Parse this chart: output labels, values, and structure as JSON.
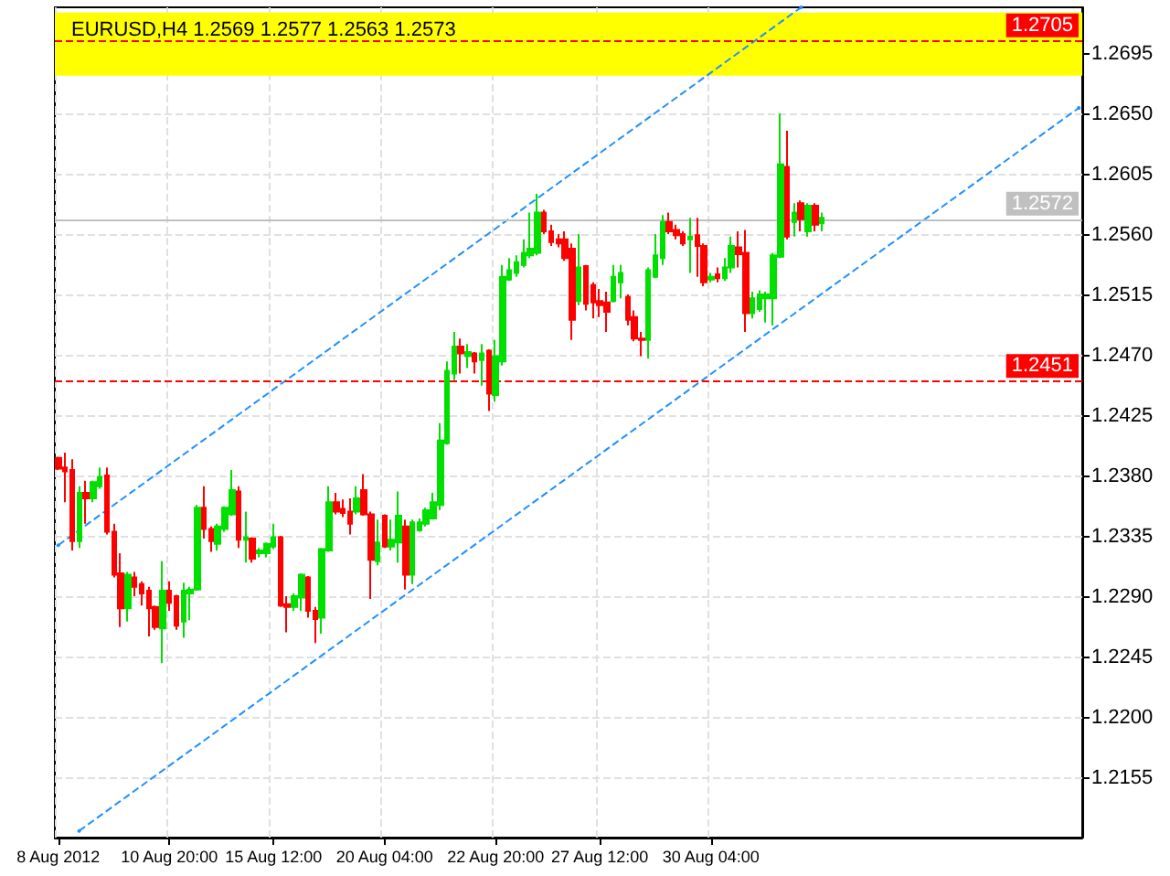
{
  "chart_data": {
    "type": "candlestick",
    "title": "EURUSD,H4 1.2569 1.2577 1.2563 1.2573",
    "categories": [
      "8 Aug 2012",
      null,
      null,
      null,
      null,
      null,
      null,
      null,
      null,
      null,
      null,
      null,
      null,
      null,
      null,
      null,
      "10 Aug 20:00",
      null,
      null,
      null,
      null,
      null,
      null,
      null,
      null,
      null,
      null,
      null,
      null,
      null,
      null,
      "15 Aug 12:00",
      null,
      null,
      null,
      null,
      null,
      null,
      null,
      null,
      null,
      null,
      null,
      null,
      null,
      null,
      null,
      "20 Aug 04:00",
      null,
      null,
      null,
      null,
      null,
      null,
      null,
      null,
      null,
      null,
      null,
      null,
      null,
      null,
      null,
      "22 Aug 20:00",
      null,
      null,
      null,
      null,
      null,
      null,
      null,
      null,
      null,
      null,
      null,
      null,
      null,
      null,
      "27 Aug 12:00",
      null,
      null,
      null,
      null,
      null,
      null,
      null,
      null,
      null,
      null,
      null,
      null,
      null,
      null,
      null,
      "30 Aug 04:00",
      null,
      null,
      null,
      null,
      null,
      null,
      null,
      null,
      null,
      null,
      null,
      null,
      null,
      null,
      null,
      null,
      null,
      null,
      null,
      null,
      null,
      null,
      null,
      null,
      null,
      null,
      null,
      null,
      null,
      null,
      null,
      null,
      null,
      null,
      null,
      null,
      null,
      null,
      null,
      null,
      null,
      null,
      null,
      null,
      null,
      null,
      null,
      null,
      null,
      null,
      null,
      null,
      null
    ],
    "ohlc": [
      [
        1.2394,
        1.2395,
        1.2385,
        1.2386
      ],
      [
        1.2387,
        1.2398,
        1.2361,
        1.2384
      ],
      [
        1.2385,
        1.2393,
        1.2325,
        1.2332
      ],
      [
        1.2332,
        1.2373,
        1.2327,
        1.2368
      ],
      [
        1.2368,
        1.2377,
        1.2345,
        1.2364
      ],
      [
        1.2364,
        1.2377,
        1.2361,
        1.2376
      ],
      [
        1.2373,
        1.2387,
        1.2371,
        1.238
      ],
      [
        1.2381,
        1.2387,
        1.2337,
        1.2339
      ],
      [
        1.2339,
        1.2345,
        1.2305,
        1.2307
      ],
      [
        1.2308,
        1.2323,
        1.2268,
        1.2282
      ],
      [
        1.2282,
        1.2309,
        1.2272,
        1.2307
      ],
      [
        1.2305,
        1.2309,
        1.2291,
        1.2298
      ],
      [
        1.23,
        1.2302,
        1.2284,
        1.2293
      ],
      [
        1.2295,
        1.2298,
        1.2261,
        1.2282
      ],
      [
        1.2283,
        1.2284,
        1.2266,
        1.2268
      ],
      [
        1.2267,
        1.2317,
        1.2241,
        1.2295
      ],
      [
        1.2295,
        1.2302,
        1.228,
        1.2286
      ],
      [
        1.2291,
        1.2292,
        1.2266,
        1.2269
      ],
      [
        1.2272,
        1.2301,
        1.226,
        1.2295
      ],
      [
        1.2293,
        1.2298,
        1.2273,
        1.2296
      ],
      [
        1.2296,
        1.2359,
        1.2295,
        1.2357
      ],
      [
        1.2357,
        1.2373,
        1.2334,
        1.2341
      ],
      [
        1.2341,
        1.2343,
        1.2324,
        1.2332
      ],
      [
        1.233,
        1.2345,
        1.2325,
        1.2343
      ],
      [
        1.2341,
        1.2358,
        1.2339,
        1.2357
      ],
      [
        1.2352,
        1.2385,
        1.2351,
        1.237
      ],
      [
        1.2369,
        1.2373,
        1.2327,
        1.2333
      ],
      [
        1.2333,
        1.2354,
        1.2316,
        1.2335
      ],
      [
        1.2334,
        1.2335,
        1.2316,
        1.2319
      ],
      [
        1.2323,
        1.2327,
        1.232,
        1.2325
      ],
      [
        1.2323,
        1.2331,
        1.232,
        1.233
      ],
      [
        1.2328,
        1.2345,
        1.2326,
        1.2335
      ],
      [
        1.2335,
        1.2336,
        1.2283,
        1.2284
      ],
      [
        1.2285,
        1.2291,
        1.2264,
        1.2283
      ],
      [
        1.2283,
        1.2293,
        1.228,
        1.2291
      ],
      [
        1.229,
        1.2308,
        1.228,
        1.2307
      ],
      [
        1.2305,
        1.2306,
        1.2275,
        1.228
      ],
      [
        1.228,
        1.2283,
        1.2256,
        1.2274
      ],
      [
        1.2275,
        1.2327,
        1.2263,
        1.2326
      ],
      [
        1.2325,
        1.2373,
        1.2324,
        1.2361
      ],
      [
        1.2361,
        1.2368,
        1.2352,
        1.2354
      ],
      [
        1.2356,
        1.2363,
        1.235,
        1.2353
      ],
      [
        1.2354,
        1.2364,
        1.2337,
        1.2345
      ],
      [
        1.2354,
        1.2373,
        1.2352,
        1.2364
      ],
      [
        1.237,
        1.2382,
        1.2351,
        1.2352
      ],
      [
        1.2352,
        1.2354,
        1.2289,
        1.2318
      ],
      [
        1.2317,
        1.2348,
        1.2314,
        1.2331
      ],
      [
        1.2351,
        1.2352,
        1.2327,
        1.2328
      ],
      [
        1.2328,
        1.2348,
        1.2325,
        1.2333
      ],
      [
        1.2331,
        1.2369,
        1.2316,
        1.2351
      ],
      [
        1.2343,
        1.2348,
        1.2296,
        1.2307
      ],
      [
        1.2307,
        1.2348,
        1.23,
        1.2346
      ],
      [
        1.234,
        1.2349,
        1.2339,
        1.2346
      ],
      [
        1.2345,
        1.2357,
        1.2343,
        1.2355
      ],
      [
        1.2349,
        1.2368,
        1.2348,
        1.2361
      ],
      [
        1.2359,
        1.242,
        1.2355,
        1.2407
      ],
      [
        1.2405,
        1.2466,
        1.2404,
        1.2459
      ],
      [
        1.2457,
        1.2488,
        1.2452,
        1.2477
      ],
      [
        1.2477,
        1.2483,
        1.2457,
        1.2472
      ],
      [
        1.247,
        1.2479,
        1.2461,
        1.2473
      ],
      [
        1.2472,
        1.2473,
        1.2457,
        1.2466
      ],
      [
        1.2467,
        1.2479,
        1.2448,
        1.2472
      ],
      [
        1.2474,
        1.2475,
        1.2429,
        1.2442
      ],
      [
        1.2441,
        1.2482,
        1.2436,
        1.247
      ],
      [
        1.2466,
        1.2538,
        1.2463,
        1.2529
      ],
      [
        1.2527,
        1.2543,
        1.2526,
        1.2534
      ],
      [
        1.2532,
        1.2545,
        1.2529,
        1.254
      ],
      [
        1.2538,
        1.2557,
        1.2536,
        1.2547
      ],
      [
        1.2545,
        1.2577,
        1.2543,
        1.255
      ],
      [
        1.2547,
        1.2591,
        1.2545,
        1.2577
      ],
      [
        1.2577,
        1.2579,
        1.2561,
        1.2563
      ],
      [
        1.2563,
        1.2568,
        1.2552,
        1.2555
      ],
      [
        1.2557,
        1.2561,
        1.2551,
        1.2554
      ],
      [
        1.2557,
        1.2563,
        1.2541,
        1.2543
      ],
      [
        1.255,
        1.2554,
        1.2482,
        1.2497
      ],
      [
        1.2511,
        1.2561,
        1.2508,
        1.2536
      ],
      [
        1.2537,
        1.2538,
        1.2504,
        1.2509
      ],
      [
        1.2523,
        1.2525,
        1.2498,
        1.251
      ],
      [
        1.2511,
        1.252,
        1.2499,
        1.2508
      ],
      [
        1.251,
        1.2518,
        1.2488,
        1.2503
      ],
      [
        1.2511,
        1.2538,
        1.251,
        1.2529
      ],
      [
        1.2525,
        1.2538,
        1.2513,
        1.2532
      ],
      [
        1.2514,
        1.2516,
        1.2493,
        1.2497
      ],
      [
        1.2499,
        1.2504,
        1.2481,
        1.2483
      ],
      [
        1.2483,
        1.2488,
        1.247,
        1.2482
      ],
      [
        1.2482,
        1.2536,
        1.2468,
        1.2534
      ],
      [
        1.2529,
        1.2561,
        1.2528,
        1.2545
      ],
      [
        1.2543,
        1.2575,
        1.2538,
        1.257
      ],
      [
        1.257,
        1.2577,
        1.2561,
        1.2563
      ],
      [
        1.2564,
        1.2568,
        1.2557,
        1.256
      ],
      [
        1.2561,
        1.2563,
        1.2552,
        1.2554
      ],
      [
        1.2557,
        1.2573,
        1.2532,
        1.2559
      ],
      [
        1.256,
        1.2573,
        1.2529,
        1.2552
      ],
      [
        1.2552,
        1.2554,
        1.2522,
        1.2525
      ],
      [
        1.2527,
        1.2532,
        1.2525,
        1.2529
      ],
      [
        1.2531,
        1.2536,
        1.2525,
        1.2528
      ],
      [
        1.2528,
        1.2543,
        1.2526,
        1.2536
      ],
      [
        1.2536,
        1.2559,
        1.2532,
        1.2552
      ],
      [
        1.2551,
        1.2563,
        1.2536,
        1.2546
      ],
      [
        1.2547,
        1.2564,
        1.2488,
        1.2502
      ],
      [
        1.2502,
        1.2518,
        1.2498,
        1.2513
      ],
      [
        1.2505,
        1.2519,
        1.2503,
        1.2516
      ],
      [
        1.2513,
        1.2518,
        1.2495,
        1.2516
      ],
      [
        1.2513,
        1.2547,
        1.2493,
        1.2545
      ],
      [
        1.2544,
        1.2651,
        1.2543,
        1.2613
      ],
      [
        1.2611,
        1.2638,
        1.2557,
        1.2559
      ],
      [
        1.257,
        1.2584,
        1.2559,
        1.2577
      ],
      [
        1.2584,
        1.2586,
        1.2563,
        1.2572
      ],
      [
        1.2563,
        1.2584,
        1.2559,
        1.2582
      ],
      [
        1.2582,
        1.2584,
        1.2563,
        1.2568
      ],
      [
        1.2569,
        1.2577,
        1.2563,
        1.2573
      ],
      null,
      null,
      null,
      null,
      null,
      null,
      null,
      null,
      null,
      null,
      null,
      null,
      null,
      null,
      null,
      null,
      null,
      null,
      null,
      null,
      null,
      null,
      null,
      null,
      null,
      null,
      null,
      null,
      null,
      null,
      null,
      null,
      null,
      null,
      null,
      null,
      null
    ],
    "series": [
      {
        "type": "line",
        "color": "#1e90ff",
        "values": [
          1.2329,
          null,
          null,
          null,
          null,
          null,
          null,
          null,
          null,
          null,
          null,
          null,
          null,
          null,
          null,
          null,
          null,
          null,
          null,
          null,
          null,
          null,
          null,
          null,
          null,
          null,
          null,
          null,
          null,
          null,
          null,
          null,
          null,
          null,
          null,
          null,
          null,
          null,
          null,
          null,
          null,
          null,
          null,
          null,
          null,
          null,
          null,
          null,
          null,
          null,
          null,
          null,
          null,
          null,
          null,
          null,
          null,
          null,
          null,
          null,
          null,
          null,
          null,
          null,
          null,
          null,
          null,
          null,
          null,
          null,
          null,
          null,
          null,
          null,
          null,
          null,
          null,
          null,
          null,
          null,
          null,
          null,
          null,
          null,
          null,
          null,
          null,
          null,
          null,
          null,
          null,
          null,
          null,
          null,
          null,
          null,
          null,
          null,
          null,
          null,
          null,
          null,
          null,
          null,
          null,
          null,
          null,
          1.273,
          null,
          null,
          null,
          null,
          null,
          null,
          null,
          null,
          null,
          null,
          null,
          null,
          null,
          null,
          null,
          null,
          null,
          null,
          null,
          null,
          null,
          null,
          null,
          null,
          null,
          null,
          null,
          null,
          null,
          null,
          null,
          null,
          null,
          null,
          null,
          null,
          null,
          null,
          null,
          null
        ]
      },
      {
        "type": "line",
        "color": "#1e90ff",
        "values": [
          null,
          null,
          null,
          1.2116,
          null,
          null,
          null,
          null,
          null,
          null,
          null,
          null,
          null,
          null,
          null,
          null,
          null,
          null,
          null,
          null,
          null,
          null,
          null,
          null,
          null,
          null,
          null,
          null,
          null,
          null,
          null,
          null,
          null,
          null,
          null,
          null,
          null,
          null,
          null,
          null,
          null,
          null,
          null,
          null,
          null,
          null,
          null,
          null,
          null,
          null,
          null,
          null,
          null,
          null,
          null,
          null,
          null,
          null,
          null,
          null,
          null,
          null,
          null,
          null,
          null,
          null,
          null,
          null,
          null,
          null,
          null,
          null,
          null,
          null,
          null,
          null,
          null,
          null,
          null,
          null,
          null,
          null,
          null,
          null,
          null,
          null,
          null,
          null,
          null,
          null,
          null,
          null,
          null,
          null,
          null,
          null,
          null,
          null,
          null,
          null,
          null,
          null,
          null,
          null,
          null,
          null,
          null,
          null,
          null,
          null,
          null,
          null,
          null,
          null,
          null,
          null,
          null,
          null,
          null,
          null,
          null,
          null,
          null,
          null,
          null,
          null,
          null,
          null,
          null,
          null,
          null,
          null,
          null,
          null,
          null,
          null,
          null,
          null,
          null,
          null,
          null,
          null,
          null,
          null,
          null,
          null,
          null,
          1.2655
        ]
      }
    ],
    "line_style": "dashed",
    "ylim": [
      1.2111,
      1.273
    ],
    "yticks": [
      1.2695,
      {
        "value": 1.265,
        "label": "1.2650"
      },
      1.2605,
      {
        "value": 1.256,
        "label": "1.2560"
      },
      1.2515,
      {
        "value": 1.247,
        "label": "1.2470"
      },
      1.2425,
      {
        "value": 1.238,
        "label": "1.2380"
      },
      1.2335,
      {
        "value": 1.229,
        "label": "1.2290"
      },
      1.2245,
      {
        "value": 1.22,
        "label": "1.2200"
      },
      1.2155
    ],
    "ref_lines": [
      {
        "axis": "y",
        "value": 1.2705,
        "label": "1.2705",
        "color": "#ff0000",
        "line_style": "dashed"
      },
      {
        "axis": "y",
        "value": 1.2572,
        "label": "1.2572",
        "color": "#c0c0c0",
        "line_style": "solid"
      },
      {
        "axis": "y",
        "value": 1.2451,
        "label": "1.2451",
        "color": "#ff0000",
        "line_style": "dashed"
      }
    ],
    "bands": [
      {
        "axis": "y",
        "from": 1.2679,
        "to": 1.2726,
        "color": "#ffff00"
      }
    ],
    "grid": true
  }
}
